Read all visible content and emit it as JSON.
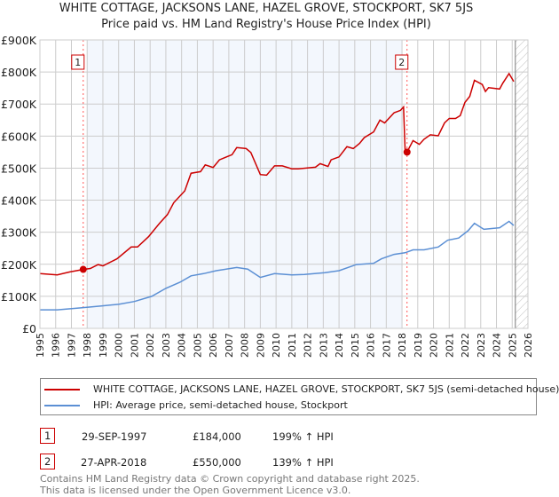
{
  "title_line1": "WHITE COTTAGE, JACKSONS LANE, HAZEL GROVE, STOCKPORT, SK7 5JS",
  "title_line2": "Price paid vs. HM Land Registry's House Price Index (HPI)",
  "chart_data": {
    "type": "line",
    "xlim": [
      1995,
      2026
    ],
    "ylim": [
      0,
      900000
    ],
    "x_ticks": [
      1995,
      1996,
      1997,
      1998,
      1999,
      2000,
      2001,
      2002,
      2003,
      2004,
      2005,
      2006,
      2007,
      2008,
      2009,
      2010,
      2011,
      2012,
      2013,
      2014,
      2015,
      2016,
      2017,
      2018,
      2019,
      2020,
      2021,
      2022,
      2023,
      2024,
      2025,
      2026
    ],
    "y_ticks": [
      0,
      100000,
      200000,
      300000,
      400000,
      500000,
      600000,
      700000,
      800000,
      900000
    ],
    "y_tick_labels": [
      "£0",
      "£100K",
      "£200K",
      "£300K",
      "£400K",
      "£500K",
      "£600K",
      "£700K",
      "£800K",
      "£900K"
    ],
    "grid": true,
    "shaded_range": [
      1998.0,
      2018.0
    ],
    "hatched_from": 2025.2,
    "series": [
      {
        "name": "WHITE COTTAGE, JACKSONS LANE, HAZEL GROVE, STOCKPORT, SK7 5JS (semi-detached house)",
        "color": "#cc0000",
        "points": [
          [
            1995.0,
            171
          ],
          [
            1996.1,
            167
          ],
          [
            1996.9,
            176
          ],
          [
            1997.75,
            184
          ],
          [
            1998.2,
            187
          ],
          [
            1998.7,
            199
          ],
          [
            1999.0,
            195
          ],
          [
            1999.9,
            217
          ],
          [
            2000.8,
            254
          ],
          [
            2001.2,
            254
          ],
          [
            2001.9,
            286
          ],
          [
            2002.6,
            328
          ],
          [
            2003.1,
            355
          ],
          [
            2003.5,
            392
          ],
          [
            2004.2,
            429
          ],
          [
            2004.6,
            484
          ],
          [
            2005.2,
            489
          ],
          [
            2005.5,
            510
          ],
          [
            2006.0,
            502
          ],
          [
            2006.4,
            526
          ],
          [
            2007.2,
            542
          ],
          [
            2007.5,
            564
          ],
          [
            2008.1,
            561
          ],
          [
            2008.4,
            549
          ],
          [
            2009.0,
            480
          ],
          [
            2009.4,
            478
          ],
          [
            2009.9,
            507
          ],
          [
            2010.4,
            507
          ],
          [
            2011.0,
            498
          ],
          [
            2011.4,
            498
          ],
          [
            2012.5,
            503
          ],
          [
            2012.8,
            514
          ],
          [
            2013.3,
            505
          ],
          [
            2013.5,
            526
          ],
          [
            2014.0,
            535
          ],
          [
            2014.5,
            567
          ],
          [
            2014.9,
            561
          ],
          [
            2015.3,
            577
          ],
          [
            2015.6,
            595
          ],
          [
            2016.2,
            613
          ],
          [
            2016.6,
            650
          ],
          [
            2016.9,
            641
          ],
          [
            2017.5,
            673
          ],
          [
            2017.9,
            680
          ],
          [
            2018.1,
            691
          ],
          [
            2018.2,
            553
          ],
          [
            2018.32,
            550
          ],
          [
            2018.7,
            586
          ],
          [
            2019.1,
            574
          ],
          [
            2019.4,
            590
          ],
          [
            2019.8,
            604
          ],
          [
            2020.3,
            601
          ],
          [
            2020.7,
            641
          ],
          [
            2021.0,
            655
          ],
          [
            2021.4,
            655
          ],
          [
            2021.7,
            664
          ],
          [
            2022.0,
            705
          ],
          [
            2022.3,
            724
          ],
          [
            2022.6,
            774
          ],
          [
            2023.1,
            761
          ],
          [
            2023.3,
            739
          ],
          [
            2023.5,
            751
          ],
          [
            2024.2,
            747
          ],
          [
            2024.4,
            765
          ],
          [
            2024.8,
            795
          ],
          [
            2025.1,
            770
          ]
        ]
      },
      {
        "name": "HPI: Average price, semi-detached house, Stockport",
        "color": "#5b8fd4",
        "points": [
          [
            1995.0,
            58
          ],
          [
            1996.1,
            58
          ],
          [
            1997.6,
            64
          ],
          [
            1998.9,
            70
          ],
          [
            2000.0,
            75
          ],
          [
            2001.0,
            84
          ],
          [
            2002.1,
            100
          ],
          [
            2003.0,
            125
          ],
          [
            2003.9,
            144
          ],
          [
            2004.6,
            164
          ],
          [
            2005.4,
            171
          ],
          [
            2006.2,
            180
          ],
          [
            2007.5,
            190
          ],
          [
            2008.2,
            185
          ],
          [
            2009.0,
            159
          ],
          [
            2009.9,
            171
          ],
          [
            2011.0,
            167
          ],
          [
            2011.8,
            168
          ],
          [
            2013.1,
            174
          ],
          [
            2014.0,
            180
          ],
          [
            2015.1,
            199
          ],
          [
            2016.2,
            203
          ],
          [
            2016.7,
            217
          ],
          [
            2017.5,
            231
          ],
          [
            2018.2,
            236
          ],
          [
            2018.7,
            245
          ],
          [
            2019.4,
            245
          ],
          [
            2020.3,
            254
          ],
          [
            2020.9,
            275
          ],
          [
            2021.6,
            282
          ],
          [
            2022.2,
            305
          ],
          [
            2022.6,
            328
          ],
          [
            2023.2,
            309
          ],
          [
            2024.2,
            314
          ],
          [
            2024.8,
            334
          ],
          [
            2025.1,
            321
          ]
        ]
      }
    ],
    "point_units": "thousand GBP",
    "markers": [
      {
        "label": "1",
        "x": 1997.75,
        "y": 184
      },
      {
        "label": "2",
        "x": 2018.32,
        "y": 550
      }
    ]
  },
  "legend": {
    "property": "WHITE COTTAGE, JACKSONS LANE, HAZEL GROVE, STOCKPORT, SK7 5JS (semi-detached house)",
    "hpi": "HPI: Average price, semi-detached house, Stockport"
  },
  "sales": [
    {
      "num": "1",
      "date": "29-SEP-1997",
      "price": "£184,000",
      "hpi": "199% ↑ HPI"
    },
    {
      "num": "2",
      "date": "27-APR-2018",
      "price": "£550,000",
      "hpi": "139% ↑ HPI"
    }
  ],
  "footer_line1": "Contains HM Land Registry data © Crown copyright and database right 2025.",
  "footer_line2": "This data is licensed under the Open Government Licence v3.0."
}
